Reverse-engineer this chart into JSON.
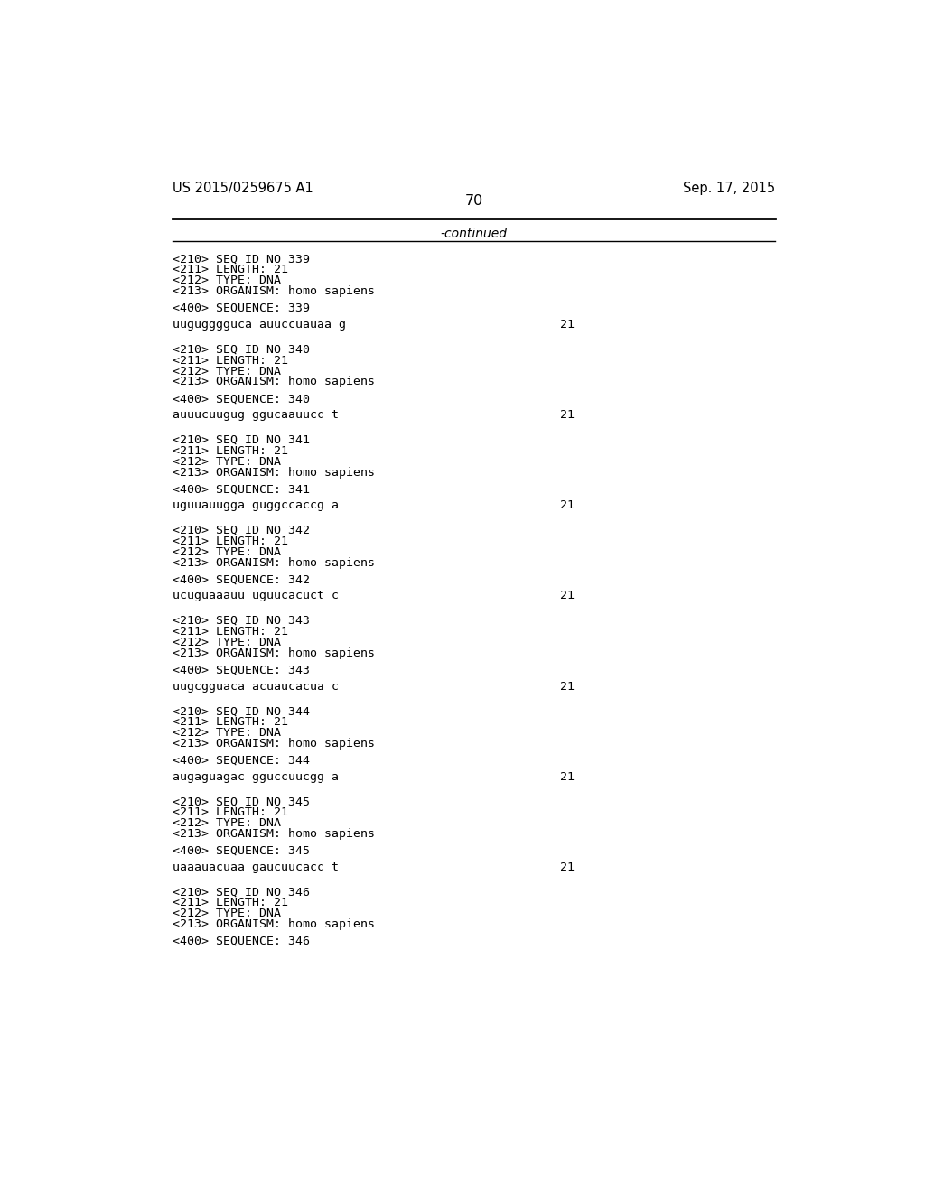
{
  "bg_color": "#ffffff",
  "top_left_text": "US 2015/0259675 A1",
  "top_right_text": "Sep. 17, 2015",
  "page_number": "70",
  "continued_label": "-continued",
  "font_family": "monospace",
  "header_font_size": 10.5,
  "body_font_size": 9.5,
  "entries": [
    {
      "seq_id": "339",
      "length": "21",
      "type": "DNA",
      "organism": "homo sapiens",
      "sequence": "uugugggguca auuccuauaa g",
      "seq_length_val": "21"
    },
    {
      "seq_id": "340",
      "length": "21",
      "type": "DNA",
      "organism": "homo sapiens",
      "sequence": "auuucuugug ggucaauucc t",
      "seq_length_val": "21"
    },
    {
      "seq_id": "341",
      "length": "21",
      "type": "DNA",
      "organism": "homo sapiens",
      "sequence": "uguuauugga guggccaccg a",
      "seq_length_val": "21"
    },
    {
      "seq_id": "342",
      "length": "21",
      "type": "DNA",
      "organism": "homo sapiens",
      "sequence": "ucuguaaauu uguucacuct c",
      "seq_length_val": "21"
    },
    {
      "seq_id": "343",
      "length": "21",
      "type": "DNA",
      "organism": "homo sapiens",
      "sequence": "uugcgguaca acuaucacua c",
      "seq_length_val": "21"
    },
    {
      "seq_id": "344",
      "length": "21",
      "type": "DNA",
      "organism": "homo sapiens",
      "sequence": "augaguagac gguccuucgg a",
      "seq_length_val": "21"
    },
    {
      "seq_id": "345",
      "length": "21",
      "type": "DNA",
      "organism": "homo sapiens",
      "sequence": "uaaauacuaa gaucuucacc t",
      "seq_length_val": "21"
    },
    {
      "seq_id": "346",
      "length": "21",
      "type": "DNA",
      "organism": "homo sapiens",
      "sequence": null,
      "seq_length_val": null
    }
  ]
}
